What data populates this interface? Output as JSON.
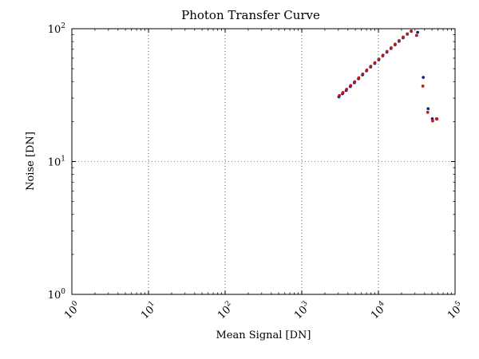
{
  "chart_data": {
    "type": "scatter",
    "title": "Photon Transfer Curve",
    "xlabel": "Mean Signal [DN]",
    "ylabel": "Noise [DN]",
    "x_scale": "log",
    "y_scale": "log",
    "xlim": [
      1,
      100000
    ],
    "ylim": [
      1,
      100
    ],
    "x_ticks": [
      {
        "base": "10",
        "exp": "0",
        "value": 1
      },
      {
        "base": "10",
        "exp": "1",
        "value": 10
      },
      {
        "base": "10",
        "exp": "2",
        "value": 100
      },
      {
        "base": "10",
        "exp": "3",
        "value": 1000
      },
      {
        "base": "10",
        "exp": "4",
        "value": 10000
      },
      {
        "base": "10",
        "exp": "5",
        "value": 100000
      }
    ],
    "y_ticks": [
      {
        "base": "10",
        "exp": "0",
        "value": 1
      },
      {
        "base": "10",
        "exp": "1",
        "value": 10
      },
      {
        "base": "10",
        "exp": "2",
        "value": 100
      }
    ],
    "grid": true,
    "series": [
      {
        "color": "#1a237e",
        "points": [
          [
            3050,
            30.7
          ],
          [
            3400,
            32.4
          ],
          [
            3800,
            34.3
          ],
          [
            4300,
            36.7
          ],
          [
            4850,
            39.2
          ],
          [
            5500,
            42.0
          ],
          [
            6200,
            44.9
          ],
          [
            7000,
            48.2
          ],
          [
            7900,
            51.5
          ],
          [
            8950,
            54.8
          ],
          [
            10100,
            58.3
          ],
          [
            11400,
            62.5
          ],
          [
            12900,
            66.6
          ],
          [
            14600,
            71.0
          ],
          [
            16500,
            75.7
          ],
          [
            18600,
            80.4
          ],
          [
            21000,
            85.5
          ],
          [
            23800,
            91.0
          ],
          [
            26800,
            96.0
          ],
          [
            32500,
            94.0
          ],
          [
            38500,
            43.0
          ],
          [
            44500,
            25.0
          ],
          [
            50500,
            21.0
          ],
          [
            57500,
            21.0
          ]
        ]
      },
      {
        "color": "#b71c1c",
        "points": [
          [
            3100,
            31.4
          ],
          [
            3450,
            33.1
          ],
          [
            3850,
            35.0
          ],
          [
            4350,
            37.4
          ],
          [
            4900,
            39.9
          ],
          [
            5550,
            42.7
          ],
          [
            6250,
            45.6
          ],
          [
            7050,
            48.9
          ],
          [
            7950,
            52.2
          ],
          [
            9000,
            55.5
          ],
          [
            10150,
            59.0
          ],
          [
            11450,
            63.2
          ],
          [
            12950,
            67.4
          ],
          [
            14650,
            71.8
          ],
          [
            16550,
            76.6
          ],
          [
            18650,
            81.4
          ],
          [
            21050,
            86.6
          ],
          [
            23850,
            91.6
          ],
          [
            26900,
            95.4
          ],
          [
            31500,
            89.0
          ],
          [
            38000,
            37.0
          ],
          [
            44000,
            23.5
          ],
          [
            51000,
            20.2
          ],
          [
            58000,
            20.9
          ]
        ]
      }
    ]
  }
}
